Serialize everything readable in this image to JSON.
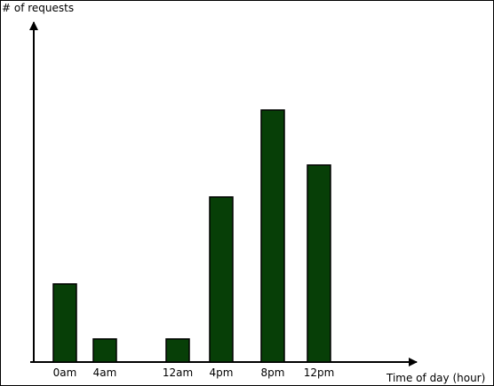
{
  "chart_data": {
    "type": "bar",
    "y_label": "# of requests",
    "x_label": "Time of day (hour)",
    "categories": [
      "0am",
      "4am",
      "12am",
      "4pm",
      "8pm",
      "12pm"
    ],
    "values": [
      88,
      26,
      26,
      186,
      284,
      222
    ],
    "color": "#073f07",
    "ylim": [
      0,
      380
    ]
  }
}
